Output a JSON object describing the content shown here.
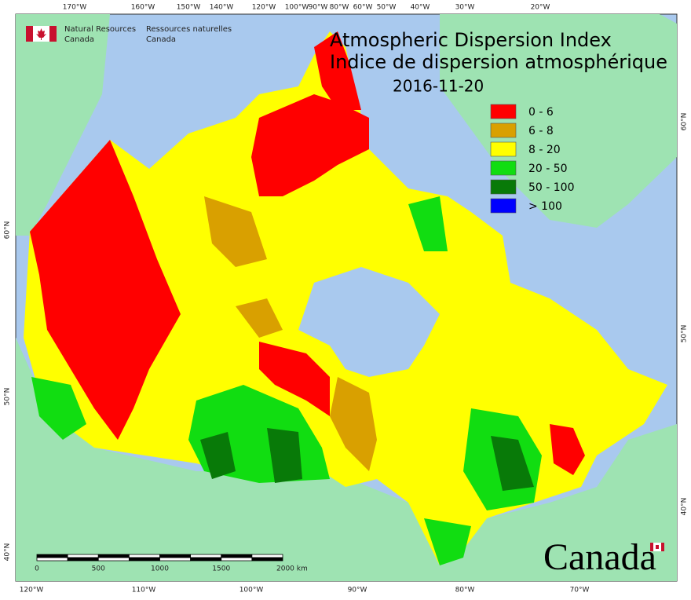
{
  "header": {
    "agency_en": [
      "Natural Resources",
      "Canada"
    ],
    "agency_fr": [
      "Ressources naturelles",
      "Canada"
    ]
  },
  "title": [
    "Atmospheric Dispersion Index",
    "Indice de dispersion atmosphérique"
  ],
  "date": "2016-11-20",
  "legend": [
    {
      "label": "0 - 6",
      "color": "#ff0000"
    },
    {
      "label": "6 - 8",
      "color": "#d9a000"
    },
    {
      "label": "8 - 20",
      "color": "#ffff00"
    },
    {
      "label": "20 - 50",
      "color": "#11dd11"
    },
    {
      "label": "50 - 100",
      "color": "#087a08"
    },
    {
      "label": "> 100",
      "color": "#0000ff"
    }
  ],
  "graticule": {
    "top": [
      "170°W",
      "160°W",
      "150°W",
      "140°W",
      "120°W",
      "100°W",
      "90°W",
      "80°W",
      "60°W",
      "50°W",
      "40°W",
      "30°W",
      "20°W"
    ],
    "bottom": [
      "120°W",
      "110°W",
      "100°W",
      "90°W",
      "80°W",
      "70°W"
    ],
    "left": [
      "60°N",
      "50°N",
      "40°N"
    ],
    "right": [
      "60°N",
      "50°N",
      "40°N"
    ]
  },
  "scale_bar": [
    "0",
    "500",
    "1000",
    "1500",
    "2000 km"
  ],
  "wordmark": "Canada"
}
